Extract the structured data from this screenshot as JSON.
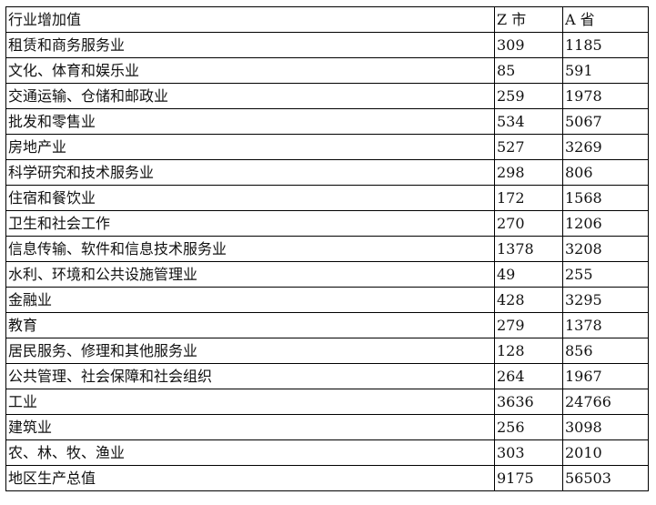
{
  "table": {
    "headers": [
      "行业增加值",
      "Z 市",
      "A 省"
    ],
    "rows": [
      [
        "租赁和商务服务业",
        "309",
        "1185"
      ],
      [
        "文化、体育和娱乐业",
        "85",
        "591"
      ],
      [
        "交通运输、仓储和邮政业",
        "259",
        "1978"
      ],
      [
        "批发和零售业",
        "534",
        "5067"
      ],
      [
        "房地产业",
        "527",
        "3269"
      ],
      [
        "科学研究和技术服务业",
        "298",
        "806"
      ],
      [
        "住宿和餐饮业",
        "172",
        "1568"
      ],
      [
        "卫生和社会工作",
        "270",
        "1206"
      ],
      [
        "信息传输、软件和信息技术服务业",
        "1378",
        "3208"
      ],
      [
        "水利、环境和公共设施管理业",
        "49",
        "255"
      ],
      [
        "金融业",
        "428",
        "3295"
      ],
      [
        "教育",
        "279",
        "1378"
      ],
      [
        "居民服务、修理和其他服务业",
        "128",
        "856"
      ],
      [
        "公共管理、社会保障和社会组织",
        "264",
        "1967"
      ],
      [
        "工业",
        "3636",
        "24766"
      ],
      [
        "建筑业",
        "256",
        "3098"
      ],
      [
        "农、林、牧、渔业",
        "303",
        "2010"
      ],
      [
        "地区生产总值",
        "9175",
        "56503"
      ]
    ]
  }
}
